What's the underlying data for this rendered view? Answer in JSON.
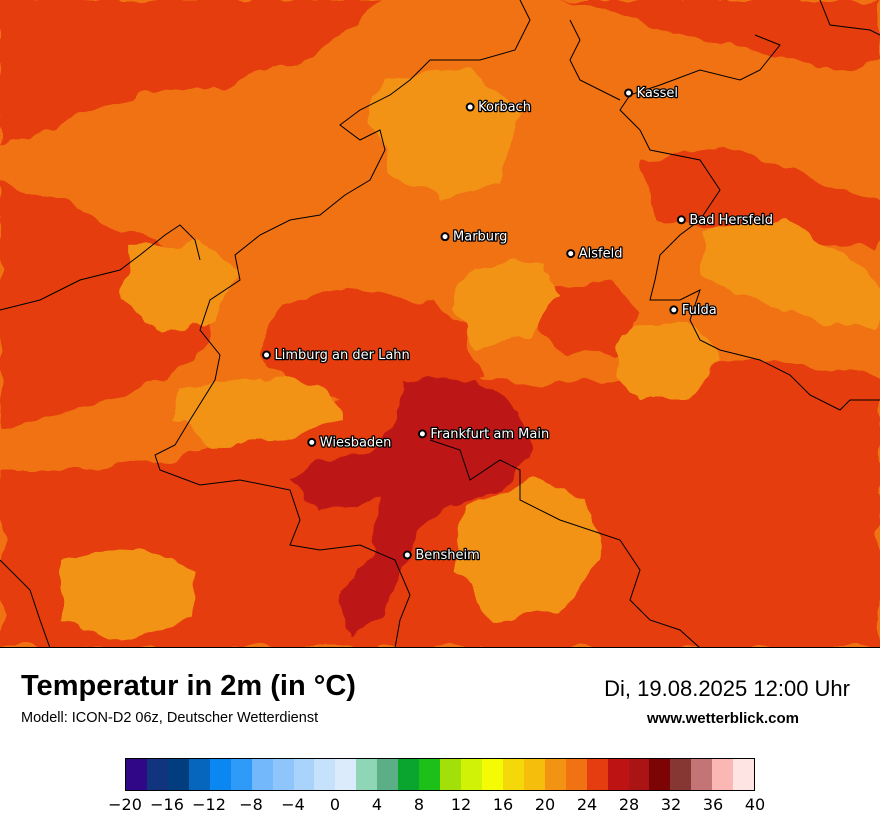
{
  "map": {
    "cities": [
      {
        "name": "Kassel",
        "lon": 9.5,
        "lat": 51.32
      },
      {
        "name": "Korbach",
        "lon": 8.87,
        "lat": 51.27
      },
      {
        "name": "Bad Hersfeld",
        "lon": 9.71,
        "lat": 50.87
      },
      {
        "name": "Marburg",
        "lon": 8.77,
        "lat": 50.81
      },
      {
        "name": "Alsfeld",
        "lon": 9.27,
        "lat": 50.75
      },
      {
        "name": "Fulda",
        "lon": 9.68,
        "lat": 50.55
      },
      {
        "name": "Limburg an der Lahn",
        "lon": 8.06,
        "lat": 50.39
      },
      {
        "name": "Frankfurt am Main",
        "lon": 8.68,
        "lat": 50.11
      },
      {
        "name": "Wiesbaden",
        "lon": 8.24,
        "lat": 50.08
      },
      {
        "name": "Bensheim",
        "lon": 8.62,
        "lat": 49.68
      }
    ],
    "extent": {
      "lon_min": 7.0,
      "lon_max": 10.5,
      "lat_min": 49.35,
      "lat_max": 51.65
    }
  },
  "header": {
    "title": "Temperatur in 2m (in °C)",
    "model": "Modell: ICON-D2 06z, Deutscher Wetterdienst",
    "datetime": "Di, 19.08.2025 12:00 Uhr",
    "website": "www.wetterblick.com"
  },
  "colorbar": {
    "min": -20,
    "max": 40,
    "step": 2,
    "colors": [
      "#2f0787",
      "#10347e",
      "#023e7d",
      "#0666be",
      "#0a87f0",
      "#2f9af8",
      "#72b8fb",
      "#8ec5fa",
      "#a9d3fb",
      "#c6e1fc",
      "#dbebfc",
      "#8fd6b7",
      "#5bae86",
      "#09a52e",
      "#1cc019",
      "#a3e00a",
      "#d0f207",
      "#f4fb04",
      "#f5d80a",
      "#f6be0c",
      "#f39314",
      "#f17213",
      "#e53d10",
      "#bd1313",
      "#ab1414",
      "#7c0404",
      "#873733",
      "#c27574",
      "#fbb7b3",
      "#fee4e3"
    ],
    "tick_labels": [
      "−20",
      "−16",
      "−12",
      "−8",
      "−4",
      "0",
      "4",
      "8",
      "12",
      "16",
      "20",
      "24",
      "28",
      "32",
      "36",
      "40"
    ]
  }
}
